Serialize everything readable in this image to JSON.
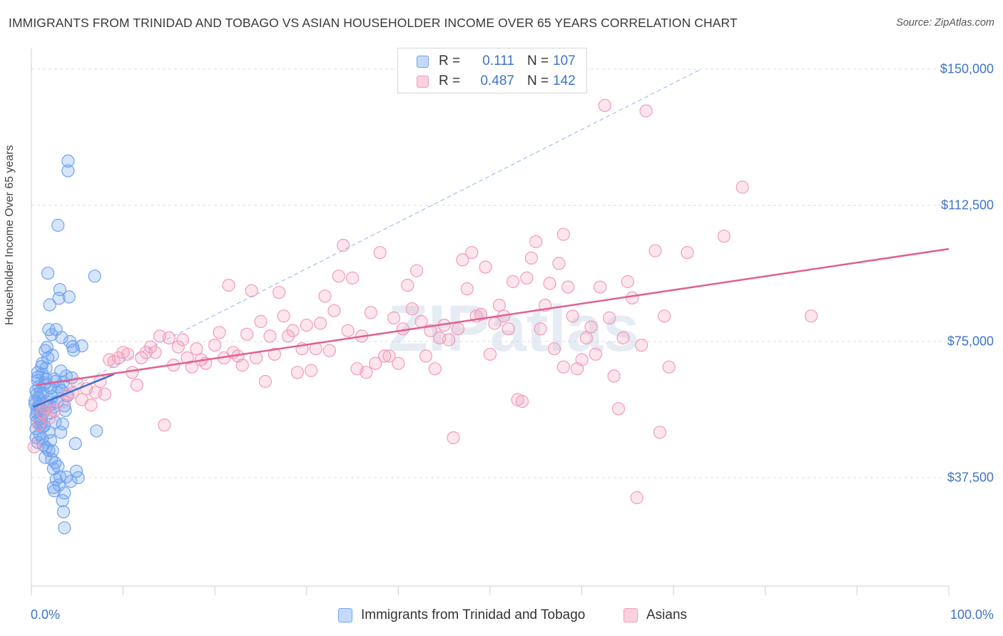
{
  "title": "IMMIGRANTS FROM TRINIDAD AND TOBAGO VS ASIAN HOUSEHOLDER INCOME OVER 65 YEARS CORRELATION CHART",
  "source": "Source: ZipAtlas.com",
  "watermark": "ZIPatlas",
  "legend": {
    "rows": [
      {
        "r_label": "R =",
        "r_value": "0.111",
        "n_label": "N =",
        "n_value": "107",
        "color": "#6fa3ef"
      },
      {
        "r_label": "R =",
        "r_value": "0.487",
        "n_label": "N =",
        "n_value": "142",
        "color": "#f29bb8"
      }
    ]
  },
  "bottom_legend": [
    {
      "label": "Immigrants from Trinidad and Tobago",
      "color": "#6fa3ef"
    },
    {
      "label": "Asians",
      "color": "#f29bb8"
    }
  ],
  "chart_data": {
    "type": "scatter",
    "title": "IMMIGRANTS FROM TRINIDAD AND TOBAGO VS ASIAN HOUSEHOLDER INCOME OVER 65 YEARS CORRELATION CHART",
    "xlabel": "",
    "ylabel": "Householder Income Over 65 years",
    "xlim": [
      0,
      100
    ],
    "ylim": [
      15000,
      152000
    ],
    "x_tick_labels": [
      "0.0%",
      "100.0%"
    ],
    "y_ticks": [
      37500,
      75000,
      112500,
      150000
    ],
    "y_tick_labels": [
      "$37,500",
      "$75,000",
      "$112,500",
      "$150,000"
    ],
    "grid": "horizontal dashed",
    "legend_position": "top-center",
    "series": [
      {
        "name": "Immigrants from Trinidad and Tobago",
        "color": "#6fa3ef",
        "trend": {
          "x": [
            0.2,
            9
          ],
          "y": [
            57000,
            66000
          ]
        },
        "trend_extended": {
          "x": [
            0.2,
            73
          ],
          "y": [
            57000,
            150000
          ]
        },
        "points": [
          [
            0.4,
            57800
          ],
          [
            0.5,
            54500
          ],
          [
            0.6,
            56300
          ],
          [
            0.4,
            58700
          ],
          [
            0.5,
            61400
          ],
          [
            0.7,
            65200
          ],
          [
            0.8,
            62600
          ],
          [
            0.6,
            55400
          ],
          [
            0.9,
            53600
          ],
          [
            1.0,
            52100
          ],
          [
            0.5,
            48600
          ],
          [
            0.7,
            47200
          ],
          [
            1.2,
            51500
          ],
          [
            1.3,
            60800
          ],
          [
            1.4,
            57200
          ],
          [
            1.5,
            63600
          ],
          [
            1.6,
            67700
          ],
          [
            1.1,
            68100
          ],
          [
            1.7,
            73400
          ],
          [
            1.9,
            78300
          ],
          [
            2.0,
            85100
          ],
          [
            1.8,
            93800
          ],
          [
            2.2,
            76900
          ],
          [
            2.3,
            71200
          ],
          [
            2.5,
            64700
          ],
          [
            2.4,
            56900
          ],
          [
            2.1,
            55300
          ],
          [
            1.9,
            50000
          ],
          [
            2.6,
            52800
          ],
          [
            2.8,
            58300
          ],
          [
            3.0,
            62500
          ],
          [
            3.2,
            66900
          ],
          [
            2.7,
            78300
          ],
          [
            3.3,
            76100
          ],
          [
            3.0,
            86900
          ],
          [
            3.1,
            89300
          ],
          [
            2.9,
            107000
          ],
          [
            4.0,
            124700
          ],
          [
            4.0,
            122000
          ],
          [
            6.9,
            93000
          ],
          [
            4.1,
            87300
          ],
          [
            4.5,
            73600
          ],
          [
            4.2,
            75000
          ],
          [
            3.5,
            63800
          ],
          [
            3.6,
            57300
          ],
          [
            3.7,
            56000
          ],
          [
            3.4,
            52300
          ],
          [
            3.2,
            50000
          ],
          [
            2.3,
            44900
          ],
          [
            2.6,
            41600
          ],
          [
            2.9,
            40600
          ],
          [
            2.2,
            42600
          ],
          [
            2.4,
            34800
          ],
          [
            3.1,
            37800
          ],
          [
            3.8,
            37700
          ],
          [
            2.5,
            33900
          ],
          [
            3.6,
            33300
          ],
          [
            3.4,
            31200
          ],
          [
            3.5,
            28100
          ],
          [
            3.6,
            23700
          ],
          [
            4.9,
            39300
          ],
          [
            5.1,
            37500
          ],
          [
            4.8,
            46900
          ],
          [
            7.1,
            50400
          ],
          [
            5.5,
            73800
          ],
          [
            4.6,
            72600
          ],
          [
            1.2,
            48200
          ],
          [
            1.6,
            45800
          ],
          [
            1.5,
            43100
          ],
          [
            2.1,
            47700
          ],
          [
            0.6,
            53000
          ],
          [
            0.9,
            57000
          ],
          [
            1.1,
            54000
          ],
          [
            1.3,
            55500
          ],
          [
            0.8,
            59500
          ],
          [
            1.0,
            61000
          ],
          [
            1.4,
            63000
          ],
          [
            1.6,
            64800
          ],
          [
            0.7,
            66500
          ],
          [
            1.2,
            69000
          ],
          [
            1.8,
            70500
          ],
          [
            1.5,
            72500
          ],
          [
            2.0,
            57500
          ],
          [
            2.2,
            59800
          ],
          [
            2.8,
            61000
          ],
          [
            3.3,
            61500
          ],
          [
            3.9,
            60000
          ],
          [
            3.8,
            65500
          ],
          [
            4.4,
            65000
          ],
          [
            0.5,
            51000
          ],
          [
            0.9,
            49500
          ],
          [
            1.3,
            46500
          ],
          [
            1.9,
            45000
          ],
          [
            2.4,
            40000
          ],
          [
            2.7,
            37000
          ],
          [
            3.0,
            35500
          ],
          [
            4.3,
            36500
          ],
          [
            0.6,
            60500
          ],
          [
            0.8,
            57500
          ],
          [
            1.0,
            55800
          ],
          [
            1.1,
            53000
          ],
          [
            1.4,
            51800
          ],
          [
            1.7,
            58500
          ],
          [
            2.1,
            62200
          ],
          [
            2.6,
            64000
          ],
          [
            0.7,
            64300
          ],
          [
            1.2,
            66000
          ]
        ]
      },
      {
        "name": "Asians",
        "color": "#f29bb8",
        "trend": {
          "x": [
            0.5,
            100
          ],
          "y": [
            63000,
            100500
          ]
        },
        "points": [
          [
            0.3,
            46000
          ],
          [
            0.8,
            52000
          ],
          [
            1.2,
            55500
          ],
          [
            1.5,
            57000
          ],
          [
            2.0,
            54000
          ],
          [
            2.5,
            56000
          ],
          [
            3.5,
            58500
          ],
          [
            4.0,
            60500
          ],
          [
            4.5,
            61000
          ],
          [
            5.0,
            63500
          ],
          [
            5.5,
            59000
          ],
          [
            6.0,
            62000
          ],
          [
            6.5,
            57500
          ],
          [
            7.0,
            61000
          ],
          [
            7.5,
            64000
          ],
          [
            8.0,
            60500
          ],
          [
            8.5,
            70000
          ],
          [
            9.0,
            69500
          ],
          [
            9.5,
            70500
          ],
          [
            10.0,
            72000
          ],
          [
            10.5,
            71500
          ],
          [
            11.0,
            66500
          ],
          [
            11.5,
            63000
          ],
          [
            12.0,
            70500
          ],
          [
            12.5,
            72000
          ],
          [
            13.0,
            73500
          ],
          [
            13.5,
            72000
          ],
          [
            14.0,
            76500
          ],
          [
            14.5,
            52000
          ],
          [
            15.0,
            76000
          ],
          [
            15.5,
            68500
          ],
          [
            16.0,
            73500
          ],
          [
            16.5,
            75500
          ],
          [
            17.0,
            70500
          ],
          [
            17.5,
            68000
          ],
          [
            18.0,
            73000
          ],
          [
            18.5,
            70000
          ],
          [
            19.0,
            69000
          ],
          [
            20.0,
            74000
          ],
          [
            20.5,
            77500
          ],
          [
            21.0,
            70500
          ],
          [
            21.5,
            90500
          ],
          [
            22.0,
            72000
          ],
          [
            22.5,
            71000
          ],
          [
            23.0,
            68500
          ],
          [
            23.5,
            77000
          ],
          [
            24.0,
            89000
          ],
          [
            24.5,
            70500
          ],
          [
            25.0,
            80500
          ],
          [
            25.5,
            64000
          ],
          [
            26.0,
            76500
          ],
          [
            26.5,
            71500
          ],
          [
            27.0,
            88500
          ],
          [
            27.5,
            82000
          ],
          [
            28.0,
            76500
          ],
          [
            28.5,
            78000
          ],
          [
            29.0,
            66500
          ],
          [
            29.5,
            73000
          ],
          [
            30.0,
            79500
          ],
          [
            30.5,
            67000
          ],
          [
            31.0,
            73000
          ],
          [
            31.5,
            80000
          ],
          [
            32.0,
            87500
          ],
          [
            32.5,
            72500
          ],
          [
            33.0,
            83500
          ],
          [
            33.5,
            93000
          ],
          [
            34.0,
            101500
          ],
          [
            34.5,
            78000
          ],
          [
            35.0,
            92500
          ],
          [
            35.5,
            67500
          ],
          [
            36.0,
            76500
          ],
          [
            36.5,
            66500
          ],
          [
            37.0,
            83000
          ],
          [
            37.5,
            69000
          ],
          [
            38.0,
            99500
          ],
          [
            38.5,
            71000
          ],
          [
            39.0,
            71000
          ],
          [
            39.5,
            81500
          ],
          [
            40.0,
            69000
          ],
          [
            40.5,
            78500
          ],
          [
            41.0,
            90500
          ],
          [
            41.5,
            84000
          ],
          [
            42.0,
            94500
          ],
          [
            42.5,
            80500
          ],
          [
            43.0,
            71000
          ],
          [
            43.5,
            78000
          ],
          [
            44.0,
            67500
          ],
          [
            44.5,
            76000
          ],
          [
            45.0,
            79500
          ],
          [
            45.5,
            75500
          ],
          [
            46.0,
            48500
          ],
          [
            46.5,
            78500
          ],
          [
            47.0,
            97500
          ],
          [
            47.5,
            89500
          ],
          [
            48.0,
            99500
          ],
          [
            48.5,
            82000
          ],
          [
            49.0,
            82500
          ],
          [
            49.5,
            95500
          ],
          [
            50.0,
            71500
          ],
          [
            50.5,
            80000
          ],
          [
            51.0,
            85000
          ],
          [
            51.5,
            82000
          ],
          [
            52.0,
            78500
          ],
          [
            52.5,
            91500
          ],
          [
            53.0,
            59000
          ],
          [
            53.5,
            58500
          ],
          [
            54.0,
            92500
          ],
          [
            54.5,
            98000
          ],
          [
            55.0,
            102500
          ],
          [
            55.5,
            78500
          ],
          [
            56.0,
            85000
          ],
          [
            56.5,
            91000
          ],
          [
            57.0,
            73000
          ],
          [
            57.5,
            96500
          ],
          [
            58.0,
            104500
          ],
          [
            58.5,
            90000
          ],
          [
            59.0,
            82000
          ],
          [
            59.5,
            67500
          ],
          [
            60.0,
            70000
          ],
          [
            60.5,
            76000
          ],
          [
            61.0,
            79000
          ],
          [
            61.5,
            71500
          ],
          [
            62.0,
            90000
          ],
          [
            62.5,
            140000
          ],
          [
            63.0,
            81500
          ],
          [
            63.5,
            65500
          ],
          [
            64.0,
            56500
          ],
          [
            64.5,
            76000
          ],
          [
            65.0,
            91500
          ],
          [
            65.5,
            87000
          ],
          [
            66.0,
            32000
          ],
          [
            66.5,
            74000
          ],
          [
            67.0,
            138500
          ],
          [
            68.0,
            100000
          ],
          [
            69.0,
            82000
          ],
          [
            69.5,
            68000
          ],
          [
            71.5,
            99500
          ],
          [
            75.5,
            104000
          ],
          [
            77.5,
            117500
          ],
          [
            85.0,
            82000
          ],
          [
            68.5,
            50000
          ],
          [
            58.0,
            68000
          ]
        ]
      }
    ]
  }
}
